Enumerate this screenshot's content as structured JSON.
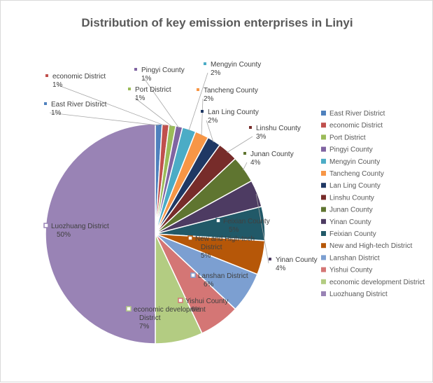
{
  "chart_data": {
    "type": "pie",
    "title": "Distribution of key emission enterprises in Linyi",
    "legend": "right",
    "categories": [
      "East River District",
      "economic District",
      "Port District",
      "Pingyi County",
      "Mengyin County",
      "Tancheng County",
      "Lan Ling County",
      "Linshu County",
      "Junan County",
      "Yinan County",
      "Feixian County",
      "New and High-tech District",
      "Lanshan District",
      "Yishui County",
      "economic development District",
      "Luozhuang District"
    ],
    "values": [
      1,
      1,
      1,
      1,
      2,
      2,
      2,
      3,
      4,
      4,
      5,
      5,
      6,
      6,
      7,
      50
    ],
    "data_labels": [
      "1%",
      "1%",
      "1%",
      "1%",
      "2%",
      "2%",
      "2%",
      "3%",
      "4%",
      "4%",
      "5%",
      "5%",
      "6%",
      "6%",
      "7%",
      "50%"
    ],
    "colors": [
      "#4f81bd",
      "#c0504d",
      "#9bbb59",
      "#8064a2",
      "#4bacc6",
      "#f79646",
      "#1f3864",
      "#772c2a",
      "#5f7530",
      "#4d3b62",
      "#215968",
      "#b65708",
      "#7c9fd1",
      "#d47675",
      "#b3cc82",
      "#9983b5"
    ]
  }
}
